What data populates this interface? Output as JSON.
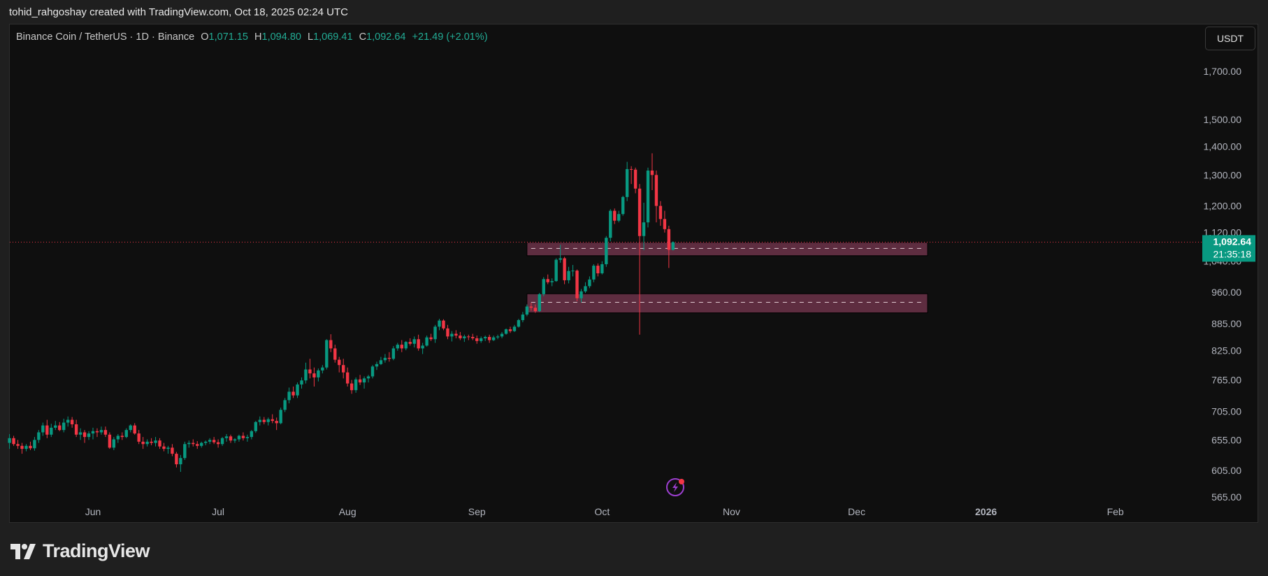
{
  "header": {
    "attribution": "tohid_rahgoshay created with TradingView.com, Oct 18, 2025 02:24 UTC"
  },
  "legend": {
    "symbol": "Binance Coin / TetherUS · 1D · Binance",
    "o_label": "O",
    "o": "1,071.15",
    "h_label": "H",
    "h": "1,094.80",
    "l_label": "L",
    "l": "1,069.41",
    "c_label": "C",
    "c": "1,092.64",
    "change": "+21.49 (+2.01%)"
  },
  "currency_button": "USDT",
  "price_label": {
    "price": "1,092.64",
    "countdown": "21:35:18"
  },
  "logo": {
    "text": "TradingView"
  },
  "colors": {
    "up": "#089981",
    "down": "#f23645",
    "zone": "#5e2d40",
    "last_price": "#089981",
    "alert_icon": "#9c3fd0"
  },
  "icons": {
    "alert": "lightning-alert-icon",
    "logo": "tradingview-logo-icon"
  },
  "chart_data": {
    "type": "candlestick",
    "title": "Binance Coin / TetherUS · 1D · Binance",
    "y_scale": "log",
    "ylim": [
      540,
      1900
    ],
    "grid": false,
    "last_price": 1092.64,
    "price_ticks": [
      1700,
      1500,
      1400,
      1300,
      1200,
      1120,
      1040,
      960,
      885,
      825,
      765,
      705,
      655,
      605,
      565
    ],
    "price_tick_labels": [
      "1,700.00",
      "1,500.00",
      "1,400.00",
      "1,300.00",
      "1,200.00",
      "1,120.00",
      "1,040.00",
      "960.00",
      "885.00",
      "825.00",
      "765.00",
      "705.00",
      "655.00",
      "605.00",
      "565.00"
    ],
    "time_ticks": [
      {
        "label": "Jun",
        "date": "2025-06-01",
        "bold": false
      },
      {
        "label": "Jul",
        "date": "2025-07-01",
        "bold": false
      },
      {
        "label": "Aug",
        "date": "2025-08-01",
        "bold": false
      },
      {
        "label": "Sep",
        "date": "2025-09-01",
        "bold": false
      },
      {
        "label": "Oct",
        "date": "2025-10-01",
        "bold": false
      },
      {
        "label": "Nov",
        "date": "2025-11-01",
        "bold": false
      },
      {
        "label": "Dec",
        "date": "2025-12-01",
        "bold": false
      },
      {
        "label": "2026",
        "date": "2026-01-01",
        "bold": true
      },
      {
        "label": "Feb",
        "date": "2026-02-01",
        "bold": false
      }
    ],
    "zones": [
      {
        "from_date": "2025-09-13",
        "to_date": "2025-12-18",
        "top": 1092,
        "bottom": 1055,
        "mid": 1075
      },
      {
        "from_date": "2025-09-13",
        "to_date": "2025-12-18",
        "top": 956,
        "bottom": 910,
        "mid": 935
      }
    ],
    "candles_columns": [
      "date",
      "open",
      "high",
      "low",
      "close"
    ],
    "candles": [
      [
        "2025-05-12",
        650,
        665,
        640,
        658
      ],
      [
        "2025-05-13",
        658,
        662,
        645,
        648
      ],
      [
        "2025-05-14",
        648,
        655,
        640,
        645
      ],
      [
        "2025-05-15",
        645,
        650,
        632,
        640
      ],
      [
        "2025-05-16",
        640,
        648,
        636,
        645
      ],
      [
        "2025-05-17",
        645,
        652,
        638,
        641
      ],
      [
        "2025-05-18",
        641,
        660,
        637,
        655
      ],
      [
        "2025-05-19",
        655,
        672,
        650,
        668
      ],
      [
        "2025-05-20",
        668,
        685,
        662,
        680
      ],
      [
        "2025-05-21",
        680,
        690,
        658,
        664
      ],
      [
        "2025-05-22",
        664,
        683,
        660,
        676
      ],
      [
        "2025-05-23",
        676,
        688,
        672,
        680
      ],
      [
        "2025-05-24",
        680,
        686,
        670,
        672
      ],
      [
        "2025-05-25",
        672,
        692,
        668,
        685
      ],
      [
        "2025-05-26",
        685,
        696,
        678,
        690
      ],
      [
        "2025-05-27",
        690,
        695,
        676,
        682
      ],
      [
        "2025-05-28",
        682,
        690,
        660,
        664
      ],
      [
        "2025-05-29",
        664,
        675,
        655,
        668
      ],
      [
        "2025-05-30",
        668,
        672,
        650,
        660
      ],
      [
        "2025-05-31",
        660,
        670,
        655,
        666
      ],
      [
        "2025-06-01",
        666,
        676,
        656,
        670
      ],
      [
        "2025-06-02",
        670,
        675,
        660,
        668
      ],
      [
        "2025-06-03",
        668,
        678,
        664,
        672
      ],
      [
        "2025-06-04",
        672,
        678,
        660,
        664
      ],
      [
        "2025-06-05",
        664,
        668,
        640,
        642
      ],
      [
        "2025-06-06",
        642,
        660,
        638,
        656
      ],
      [
        "2025-06-07",
        656,
        665,
        650,
        662
      ],
      [
        "2025-06-08",
        662,
        668,
        655,
        660
      ],
      [
        "2025-06-09",
        660,
        675,
        658,
        672
      ],
      [
        "2025-06-10",
        672,
        682,
        668,
        680
      ],
      [
        "2025-06-11",
        680,
        684,
        664,
        666
      ],
      [
        "2025-06-12",
        666,
        672,
        648,
        652
      ],
      [
        "2025-06-13",
        652,
        660,
        640,
        648
      ],
      [
        "2025-06-14",
        648,
        656,
        644,
        652
      ],
      [
        "2025-06-15",
        652,
        658,
        646,
        650
      ],
      [
        "2025-06-16",
        650,
        660,
        644,
        654
      ],
      [
        "2025-06-17",
        654,
        658,
        640,
        644
      ],
      [
        "2025-06-18",
        644,
        650,
        636,
        640
      ],
      [
        "2025-06-19",
        640,
        645,
        632,
        642
      ],
      [
        "2025-06-20",
        642,
        648,
        628,
        632
      ],
      [
        "2025-06-21",
        632,
        635,
        610,
        615
      ],
      [
        "2025-06-22",
        615,
        630,
        603,
        625
      ],
      [
        "2025-06-23",
        625,
        652,
        622,
        648
      ],
      [
        "2025-06-24",
        648,
        654,
        642,
        650
      ],
      [
        "2025-06-25",
        650,
        656,
        644,
        648
      ],
      [
        "2025-06-26",
        648,
        653,
        640,
        645
      ],
      [
        "2025-06-27",
        645,
        652,
        642,
        650
      ],
      [
        "2025-06-28",
        650,
        654,
        646,
        652
      ],
      [
        "2025-06-29",
        652,
        658,
        648,
        655
      ],
      [
        "2025-06-30",
        655,
        660,
        648,
        651
      ],
      [
        "2025-07-01",
        651,
        656,
        642,
        648
      ],
      [
        "2025-07-02",
        648,
        660,
        645,
        658
      ],
      [
        "2025-07-03",
        658,
        665,
        652,
        661
      ],
      [
        "2025-07-04",
        661,
        664,
        650,
        654
      ],
      [
        "2025-07-05",
        654,
        658,
        650,
        656
      ],
      [
        "2025-07-06",
        656,
        664,
        652,
        662
      ],
      [
        "2025-07-07",
        662,
        668,
        654,
        658
      ],
      [
        "2025-07-08",
        658,
        664,
        652,
        660
      ],
      [
        "2025-07-09",
        660,
        672,
        656,
        670
      ],
      [
        "2025-07-10",
        670,
        688,
        667,
        686
      ],
      [
        "2025-07-11",
        686,
        696,
        680,
        690
      ],
      [
        "2025-07-12",
        690,
        695,
        682,
        686
      ],
      [
        "2025-07-13",
        686,
        694,
        680,
        691
      ],
      [
        "2025-07-14",
        691,
        700,
        684,
        688
      ],
      [
        "2025-07-15",
        688,
        694,
        672,
        684
      ],
      [
        "2025-07-16",
        684,
        712,
        682,
        708
      ],
      [
        "2025-07-17",
        708,
        730,
        704,
        726
      ],
      [
        "2025-07-18",
        726,
        750,
        720,
        742
      ],
      [
        "2025-07-19",
        742,
        752,
        730,
        735
      ],
      [
        "2025-07-20",
        735,
        760,
        730,
        756
      ],
      [
        "2025-07-21",
        756,
        770,
        748,
        764
      ],
      [
        "2025-07-22",
        764,
        800,
        758,
        786
      ],
      [
        "2025-07-23",
        786,
        808,
        768,
        778
      ],
      [
        "2025-07-24",
        778,
        790,
        752,
        770
      ],
      [
        "2025-07-25",
        770,
        788,
        762,
        784
      ],
      [
        "2025-07-26",
        784,
        795,
        778,
        790
      ],
      [
        "2025-07-27",
        790,
        850,
        786,
        848
      ],
      [
        "2025-07-28",
        848,
        861,
        822,
        830
      ],
      [
        "2025-07-29",
        830,
        838,
        800,
        806
      ],
      [
        "2025-07-30",
        806,
        812,
        780,
        795
      ],
      [
        "2025-07-31",
        795,
        808,
        768,
        780
      ],
      [
        "2025-08-01",
        780,
        790,
        752,
        758
      ],
      [
        "2025-08-02",
        758,
        765,
        738,
        745
      ],
      [
        "2025-08-03",
        745,
        770,
        740,
        766
      ],
      [
        "2025-08-04",
        766,
        775,
        755,
        760
      ],
      [
        "2025-08-05",
        760,
        772,
        748,
        768
      ],
      [
        "2025-08-06",
        768,
        775,
        760,
        772
      ],
      [
        "2025-08-07",
        772,
        795,
        768,
        792
      ],
      [
        "2025-08-08",
        792,
        802,
        785,
        797
      ],
      [
        "2025-08-09",
        797,
        812,
        795,
        805
      ],
      [
        "2025-08-10",
        805,
        818,
        800,
        810
      ],
      [
        "2025-08-11",
        810,
        822,
        802,
        808
      ],
      [
        "2025-08-12",
        808,
        835,
        805,
        830
      ],
      [
        "2025-08-13",
        830,
        842,
        825,
        838
      ],
      [
        "2025-08-14",
        838,
        848,
        822,
        830
      ],
      [
        "2025-08-15",
        830,
        846,
        826,
        844
      ],
      [
        "2025-08-16",
        844,
        852,
        836,
        840
      ],
      [
        "2025-08-17",
        840,
        856,
        832,
        850
      ],
      [
        "2025-08-18",
        850,
        860,
        825,
        830
      ],
      [
        "2025-08-19",
        830,
        842,
        818,
        836
      ],
      [
        "2025-08-20",
        836,
        858,
        834,
        854
      ],
      [
        "2025-08-21",
        854,
        862,
        846,
        850
      ],
      [
        "2025-08-22",
        850,
        882,
        842,
        878
      ],
      [
        "2025-08-23",
        878,
        896,
        870,
        892
      ],
      [
        "2025-08-24",
        892,
        895,
        870,
        874
      ],
      [
        "2025-08-25",
        874,
        882,
        850,
        856
      ],
      [
        "2025-08-26",
        856,
        868,
        845,
        862
      ],
      [
        "2025-08-27",
        862,
        870,
        852,
        858
      ],
      [
        "2025-08-28",
        858,
        866,
        848,
        852
      ],
      [
        "2025-08-29",
        852,
        860,
        844,
        856
      ],
      [
        "2025-08-30",
        856,
        860,
        848,
        855
      ],
      [
        "2025-08-31",
        855,
        862,
        848,
        852
      ],
      [
        "2025-09-01",
        852,
        858,
        840,
        846
      ],
      [
        "2025-09-02",
        846,
        856,
        842,
        852
      ],
      [
        "2025-09-03",
        852,
        858,
        846,
        855
      ],
      [
        "2025-09-04",
        855,
        860,
        842,
        848
      ],
      [
        "2025-09-05",
        848,
        858,
        846,
        854
      ],
      [
        "2025-09-06",
        854,
        860,
        850,
        856
      ],
      [
        "2025-09-07",
        856,
        866,
        852,
        862
      ],
      [
        "2025-09-08",
        862,
        874,
        860,
        872
      ],
      [
        "2025-09-09",
        872,
        878,
        864,
        868
      ],
      [
        "2025-09-10",
        868,
        882,
        866,
        878
      ],
      [
        "2025-09-11",
        878,
        896,
        876,
        893
      ],
      [
        "2025-09-12",
        893,
        912,
        888,
        906
      ],
      [
        "2025-09-13",
        906,
        930,
        902,
        925
      ],
      [
        "2025-09-14",
        925,
        934,
        915,
        922
      ],
      [
        "2025-09-15",
        922,
        930,
        910,
        914
      ],
      [
        "2025-09-16",
        914,
        958,
        912,
        955
      ],
      [
        "2025-09-17",
        955,
        998,
        950,
        993
      ],
      [
        "2025-09-18",
        993,
        1005,
        980,
        985
      ],
      [
        "2025-09-19",
        985,
        995,
        975,
        988
      ],
      [
        "2025-09-20",
        988,
        1048,
        986,
        1044
      ],
      [
        "2025-09-21",
        1044,
        1085,
        1036,
        1048
      ],
      [
        "2025-09-22",
        1048,
        1052,
        980,
        990
      ],
      [
        "2025-09-23",
        990,
        1025,
        982,
        1014
      ],
      [
        "2025-09-24",
        1014,
        1030,
        1000,
        1015
      ],
      [
        "2025-09-25",
        1015,
        1018,
        938,
        945
      ],
      [
        "2025-09-26",
        945,
        968,
        935,
        962
      ],
      [
        "2025-09-27",
        962,
        985,
        958,
        975
      ],
      [
        "2025-09-28",
        975,
        1000,
        970,
        992
      ],
      [
        "2025-09-29",
        992,
        1032,
        985,
        1028
      ],
      [
        "2025-09-30",
        1028,
        1034,
        1000,
        1008
      ],
      [
        "2025-10-01",
        1008,
        1040,
        1005,
        1032
      ],
      [
        "2025-10-02",
        1032,
        1110,
        1025,
        1105
      ],
      [
        "2025-10-03",
        1105,
        1190,
        1095,
        1185
      ],
      [
        "2025-10-04",
        1185,
        1192,
        1145,
        1155
      ],
      [
        "2025-10-05",
        1155,
        1185,
        1150,
        1175
      ],
      [
        "2025-10-06",
        1175,
        1232,
        1170,
        1228
      ],
      [
        "2025-10-07",
        1228,
        1345,
        1215,
        1320
      ],
      [
        "2025-10-08",
        1320,
        1330,
        1270,
        1318
      ],
      [
        "2025-10-09",
        1318,
        1325,
        1240,
        1255
      ],
      [
        "2025-10-10",
        1255,
        1270,
        860,
        1110
      ],
      [
        "2025-10-11",
        1110,
        1210,
        1070,
        1150
      ],
      [
        "2025-10-12",
        1150,
        1325,
        1135,
        1315
      ],
      [
        "2025-10-13",
        1315,
        1375,
        1250,
        1300
      ],
      [
        "2025-10-14",
        1300,
        1315,
        1150,
        1200
      ],
      [
        "2025-10-15",
        1200,
        1215,
        1140,
        1160
      ],
      [
        "2025-10-16",
        1160,
        1185,
        1120,
        1130
      ],
      [
        "2025-10-17",
        1130,
        1140,
        1022,
        1071.15
      ],
      [
        "2025-10-18",
        1071.15,
        1094.8,
        1069.41,
        1092.64
      ]
    ]
  }
}
